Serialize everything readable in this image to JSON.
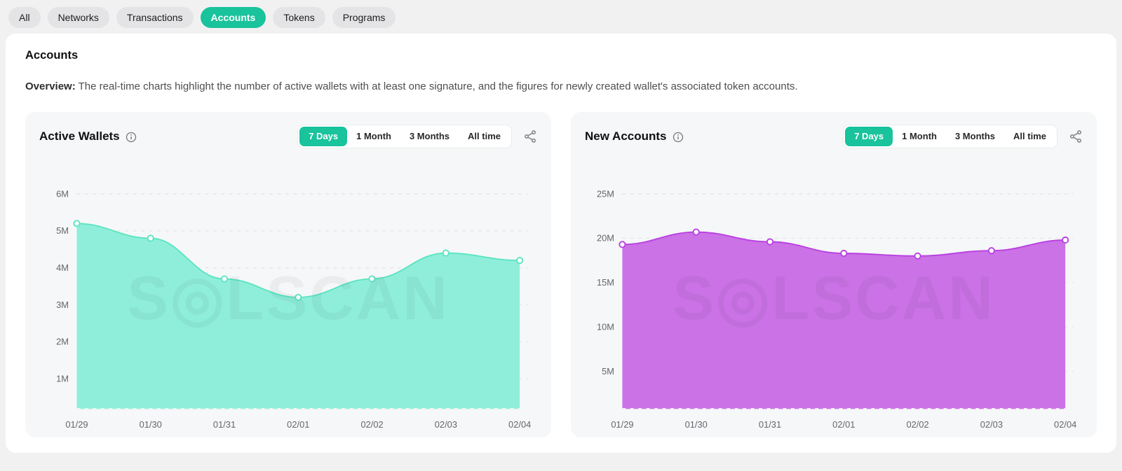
{
  "nav": {
    "tabs": [
      {
        "label": "All",
        "active": false
      },
      {
        "label": "Networks",
        "active": false
      },
      {
        "label": "Transactions",
        "active": false
      },
      {
        "label": "Accounts",
        "active": true
      },
      {
        "label": "Tokens",
        "active": false
      },
      {
        "label": "Programs",
        "active": false
      }
    ]
  },
  "page": {
    "title": "Accounts",
    "overview_label": "Overview:",
    "overview_text": "The real-time charts highlight the number of active wallets with at least one signature, and the figures for newly created wallet's associated token accounts."
  },
  "watermark": "S◎LSCAN",
  "colors": {
    "accent_green": "#19c39c",
    "left_line": "#5be5c2",
    "left_fill": "#8feeda",
    "right_line": "#b941e1",
    "right_fill": "#cb72e6",
    "grid": "#e3e3e6",
    "axis_text": "#63666c",
    "card_bg": "#f6f7f8"
  },
  "chart_data": [
    {
      "type": "area",
      "title": "Active Wallets",
      "ranges": [
        "7 Days",
        "1 Month",
        "3 Months",
        "All time"
      ],
      "active_range": "7 Days",
      "x": [
        "01/29",
        "01/30",
        "01/31",
        "02/01",
        "02/02",
        "02/03",
        "02/04"
      ],
      "values_million": [
        5.2,
        4.8,
        3.7,
        3.2,
        3.7,
        4.4,
        4.2
      ],
      "y_ticks_million": [
        1,
        2,
        3,
        4,
        5,
        6
      ],
      "ylim_million": [
        0,
        6.5
      ],
      "ylabel": "",
      "xlabel": "",
      "grid": "dashed-horizontal",
      "legend": "none",
      "line_color": "#5be5c2",
      "fill_color": "#8feeda"
    },
    {
      "type": "area",
      "title": "New Accounts",
      "ranges": [
        "7 Days",
        "1 Month",
        "3 Months",
        "All time"
      ],
      "active_range": "7 Days",
      "x": [
        "01/29",
        "01/30",
        "01/31",
        "02/01",
        "02/02",
        "02/03",
        "02/04"
      ],
      "values_million": [
        19.3,
        20.7,
        19.6,
        18.3,
        18.0,
        18.6,
        19.8
      ],
      "y_ticks_million": [
        5,
        10,
        15,
        20,
        25
      ],
      "ylim_million": [
        0,
        27
      ],
      "ylabel": "",
      "xlabel": "",
      "grid": "dashed-horizontal",
      "legend": "none",
      "line_color": "#b941e1",
      "fill_color": "#cb72e6"
    }
  ]
}
